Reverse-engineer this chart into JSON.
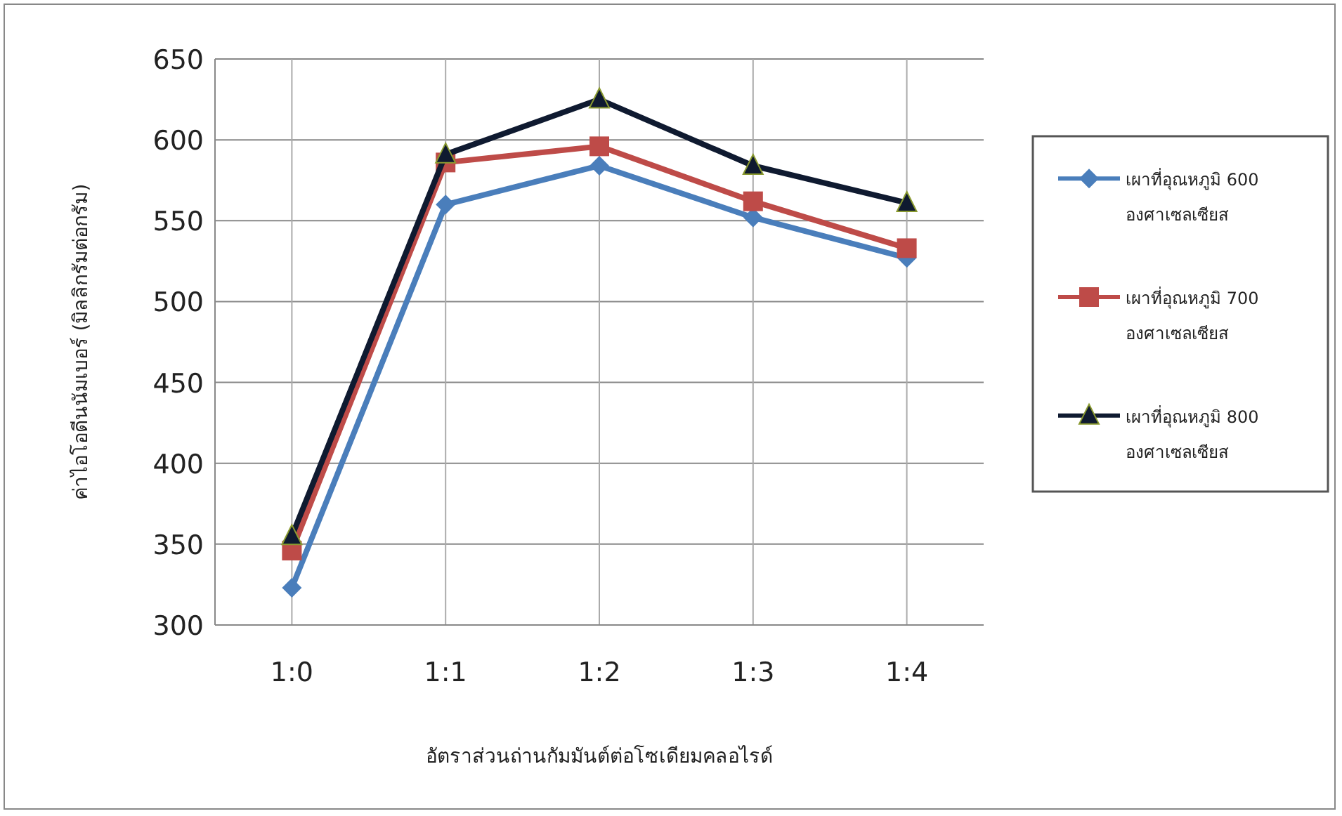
{
  "chart_data": {
    "type": "line",
    "xlabel": "อัตราส่วนถ่านกัมมันต์ต่อโซเดียมคลอไรด์",
    "ylabel": "ค่าไอโอดีนนัมเบอร์ (มิลลิกรัมต่อกรัม)",
    "categories": [
      "1:0",
      "1:1",
      "1:2",
      "1:3",
      "1:4"
    ],
    "series": [
      {
        "name": "เผาที่อุณหภูมิ 600 องศาเซลเซียส",
        "color": "#4a7ebb",
        "marker": "diamond",
        "values": [
          323,
          560,
          584,
          552,
          527
        ]
      },
      {
        "name": "เผาที่อุณหภูมิ 700 องศาเซลเซียส",
        "color": "#be4b48",
        "marker": "square",
        "values": [
          346,
          586,
          596,
          562,
          533
        ]
      },
      {
        "name": "เผาที่อุณหภูมิ 800 องศาเซลเซียส",
        "color": "#0f1a30",
        "marker": "triangle",
        "values": [
          355,
          591,
          625,
          584,
          561
        ]
      }
    ],
    "ylim": [
      300,
      650
    ],
    "yticks": [
      300,
      350,
      400,
      450,
      500,
      550,
      600,
      650
    ],
    "grid": true,
    "legend": "right"
  }
}
